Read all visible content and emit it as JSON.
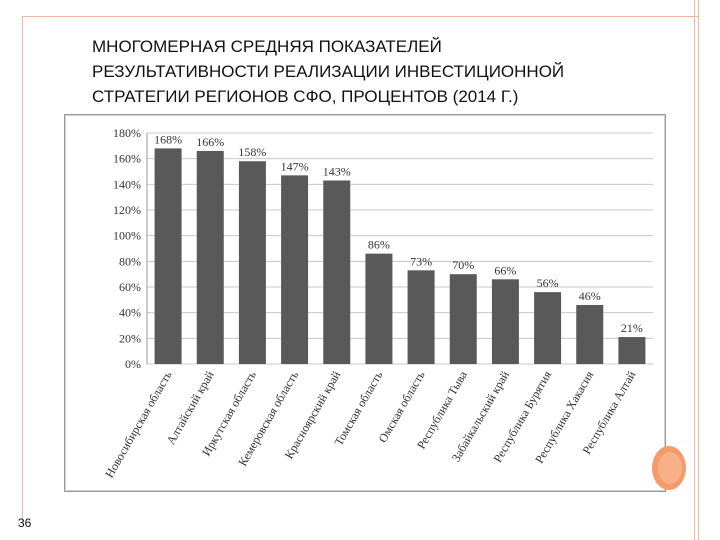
{
  "slide": {
    "title_lines": [
      "МНОГОМЕРНАЯ СРЕДНЯЯ ПОКАЗАТЕЛЕЙ",
      "РЕЗУЛЬТАТИВНОСТИ РЕАЛИЗАЦИИ ИНВЕСТИЦИОННОЙ",
      "СТРАТЕГИИ РЕГИОНОВ СФО, ПРОЦЕНТОВ (2014 Г.)"
    ],
    "page_number": "36"
  },
  "colors": {
    "bar": "#595959",
    "grid": "#c8c8c8",
    "frame": "#e8b8a0",
    "accent": "#f59a6a"
  },
  "chart_data": {
    "type": "bar",
    "title": "",
    "xlabel": "",
    "ylabel": "",
    "ylim": [
      0,
      180
    ],
    "yticks": [
      0,
      20,
      40,
      60,
      80,
      100,
      120,
      140,
      160,
      180
    ],
    "ytick_labels": [
      "0%",
      "20%",
      "40%",
      "60%",
      "80%",
      "100%",
      "120%",
      "140%",
      "160%",
      "180%"
    ],
    "grid": true,
    "categories": [
      "Новосибирская область",
      "Алтайский край",
      "Иркутская область",
      "Кемеровская область",
      "Красноярский край",
      "Томская область",
      "Омская область",
      "Республика Тыва",
      "Забайкальский край",
      "Республика Бурятия",
      "Республика Хакасия",
      "Республика Алтай"
    ],
    "values": [
      168,
      166,
      158,
      147,
      143,
      86,
      73,
      70,
      66,
      56,
      46,
      21
    ],
    "value_labels": [
      "168%",
      "166%",
      "158%",
      "147%",
      "143%",
      "86%",
      "73%",
      "70%",
      "66%",
      "56%",
      "46%",
      "21%"
    ]
  }
}
